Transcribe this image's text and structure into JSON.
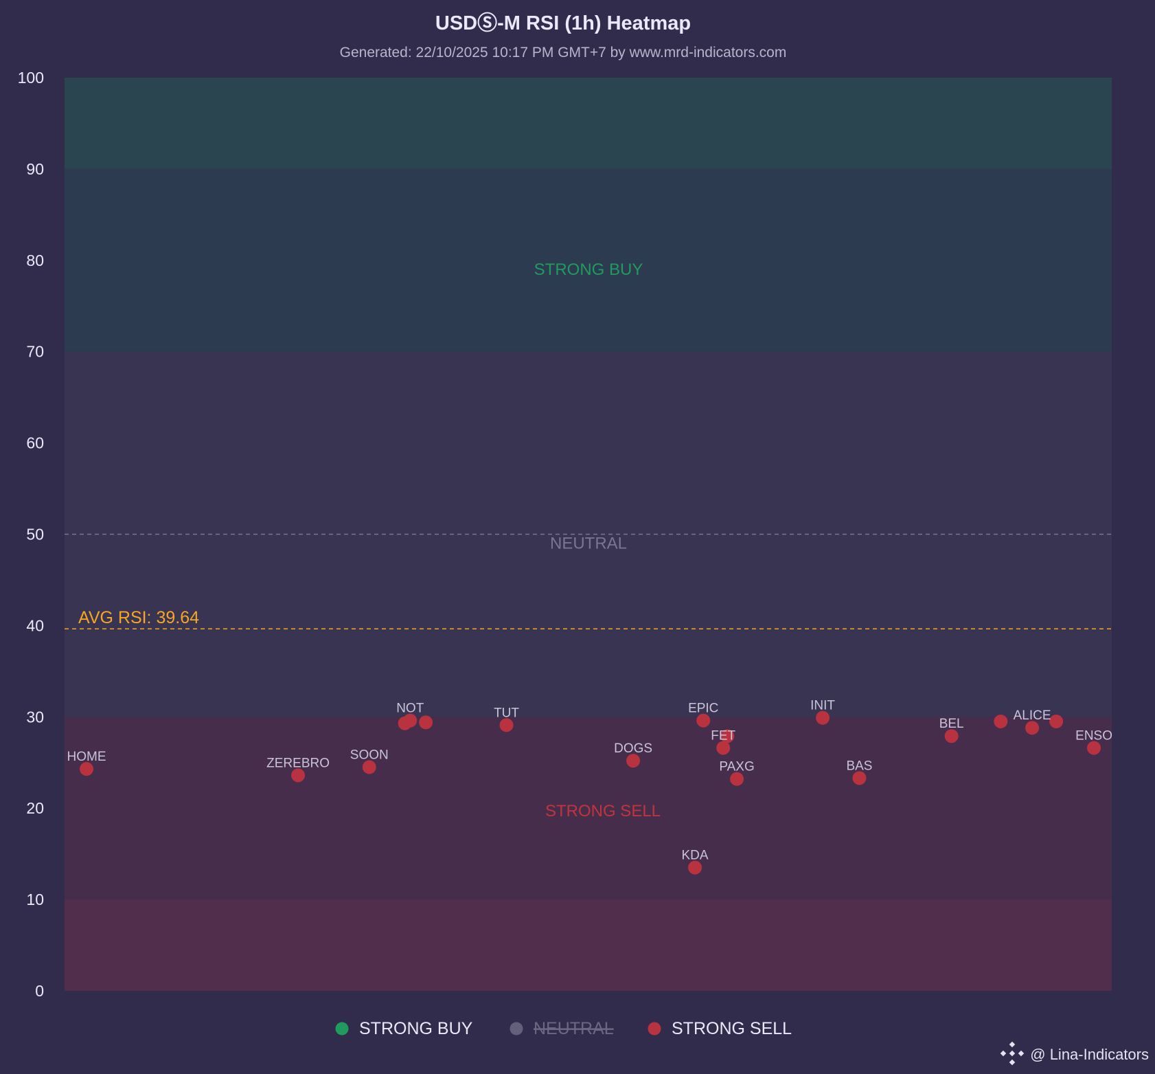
{
  "chart_data": {
    "type": "scatter",
    "title": "USDⓈ-M RSI (1h) Heatmap",
    "subtitle": "Generated: 22/10/2025 10:17 PM GMT+7 by www.mrd-indicators.com",
    "xlabel": "",
    "ylabel": "",
    "xlim": [
      0,
      100
    ],
    "ylim": [
      0,
      100
    ],
    "y_ticks": [
      "0",
      "10",
      "20",
      "30",
      "40",
      "50",
      "60",
      "70",
      "80",
      "90",
      "100"
    ],
    "grid": false,
    "zones": [
      {
        "from": 90,
        "to": 100,
        "color": "#2a4550",
        "label": ""
      },
      {
        "from": 70,
        "to": 90,
        "color": "#2c3b4f",
        "label": "STRONG BUY",
        "label_color": "#1f9b5e",
        "label_y": 79
      },
      {
        "from": 30,
        "to": 70,
        "color": "#3a3453",
        "label": ""
      },
      {
        "from": 10,
        "to": 30,
        "color": "#452d4b",
        "label": "STRONG SELL",
        "label_color": "#c0343f",
        "label_y": 19.7
      },
      {
        "from": 0,
        "to": 10,
        "color": "#512e4c",
        "label": ""
      }
    ],
    "neutral_line": {
      "value": 50,
      "label": "NEUTRAL",
      "color": "#7a7590"
    },
    "avg_line": {
      "value": 39.64,
      "label": "AVG RSI: 39.64",
      "color": "#f5a623"
    },
    "series": [
      {
        "name": "STRONG SELL",
        "color": "#b8323f",
        "points": [
          {
            "label": "HOME",
            "x": 2.1,
            "y": 24.3
          },
          {
            "label": "ZEREBRO",
            "x": 22.3,
            "y": 23.6
          },
          {
            "label": "SOON",
            "x": 29.1,
            "y": 24.5
          },
          {
            "label": "",
            "x": 32.5,
            "y": 29.3
          },
          {
            "label": "NOT",
            "x": 33.0,
            "y": 29.6
          },
          {
            "label": "",
            "x": 34.5,
            "y": 29.4
          },
          {
            "label": "TUT",
            "x": 42.2,
            "y": 29.1
          },
          {
            "label": "DOGS",
            "x": 54.3,
            "y": 25.2
          },
          {
            "label": "KDA",
            "x": 60.2,
            "y": 13.5
          },
          {
            "label": "EPIC",
            "x": 61.0,
            "y": 29.6
          },
          {
            "label": "",
            "x": 63.3,
            "y": 27.9
          },
          {
            "label": "FET",
            "x": 62.9,
            "y": 26.6
          },
          {
            "label": "PAXG",
            "x": 64.2,
            "y": 23.2
          },
          {
            "label": "INIT",
            "x": 72.4,
            "y": 29.9
          },
          {
            "label": "BAS",
            "x": 75.9,
            "y": 23.3
          },
          {
            "label": "BEL",
            "x": 84.7,
            "y": 27.9
          },
          {
            "label": "",
            "x": 89.4,
            "y": 29.5
          },
          {
            "label": "ALICE",
            "x": 92.4,
            "y": 28.8
          },
          {
            "label": "",
            "x": 94.7,
            "y": 29.5
          },
          {
            "label": "ENSO",
            "x": 98.3,
            "y": 26.6
          }
        ]
      }
    ],
    "legend": {
      "position": "bottom",
      "items": [
        {
          "label": "STRONG BUY",
          "color": "#1f9b5e",
          "hidden": false
        },
        {
          "label": "NEUTRAL",
          "color": "#7a7590",
          "hidden": true
        },
        {
          "label": "STRONG SELL",
          "color": "#b8323f",
          "hidden": false
        }
      ]
    }
  },
  "watermark": {
    "text": "@ Lina-Indicators",
    "icon": "binance-diamond-icon"
  }
}
